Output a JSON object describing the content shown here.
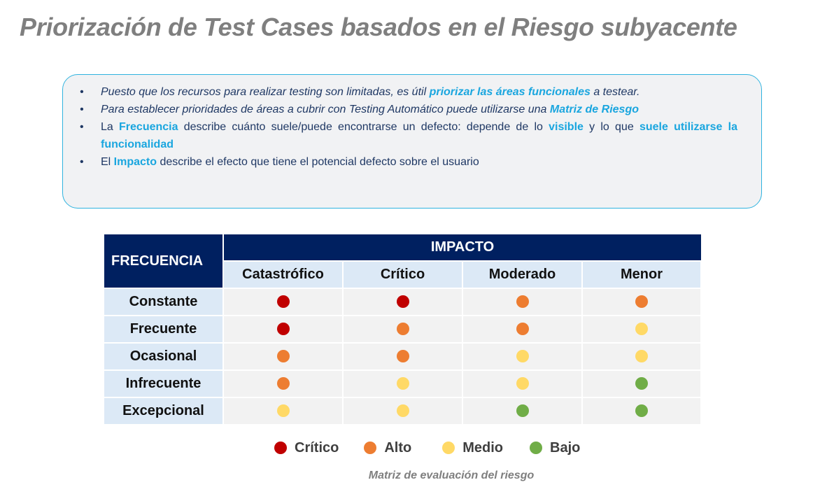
{
  "title": "Priorización de Test Cases basados en el Riesgo subyacente",
  "bullet_glyph": "•",
  "bullets": [
    {
      "parts": [
        "Puesto que los recursos para realizar testing son limitadas, es útil ",
        "priorizar  las áreas funcionales",
        " a testear."
      ]
    },
    {
      "parts": [
        "Para establecer prioridades de áreas a cubrir con Testing Automático puede utilizarse una ",
        "Matriz  de Riesgo"
      ]
    },
    {
      "parts": [
        "La ",
        "Frecuencia",
        " describe cuánto suele/puede encontrarse un defecto: depende de lo ",
        "visible",
        " y lo que ",
        "suele utilizarse la funcionalidad"
      ]
    },
    {
      "parts": [
        "El ",
        "Impacto",
        " describe el efecto que tiene el potencial defecto sobre el usuario"
      ]
    }
  ],
  "matrix": {
    "frequency_header": "FRECUENCIA",
    "impact_header": "IMPACTO",
    "columns": [
      "Catastrófico",
      "Crítico",
      "Moderado",
      "Menor"
    ],
    "rows": [
      {
        "label": "Constante",
        "levels": [
          "critico",
          "critico",
          "alto",
          "alto"
        ]
      },
      {
        "label": "Frecuente",
        "levels": [
          "critico",
          "alto",
          "alto",
          "medio"
        ]
      },
      {
        "label": "Ocasional",
        "levels": [
          "alto",
          "alto",
          "medio",
          "medio"
        ]
      },
      {
        "label": "Infrecuente",
        "levels": [
          "alto",
          "medio",
          "medio",
          "bajo"
        ]
      },
      {
        "label": "Excepcional",
        "levels": [
          "medio",
          "medio",
          "bajo",
          "bajo"
        ]
      }
    ]
  },
  "legend": [
    {
      "key": "critico",
      "label": "Crítico",
      "color": "#c00000"
    },
    {
      "key": "alto",
      "label": "Alto",
      "color": "#ed7d31"
    },
    {
      "key": "medio",
      "label": "Medio",
      "color": "#ffd966"
    },
    {
      "key": "bajo",
      "label": "Bajo",
      "color": "#70ad47"
    }
  ],
  "caption": "Matriz de evaluación del riesgo"
}
